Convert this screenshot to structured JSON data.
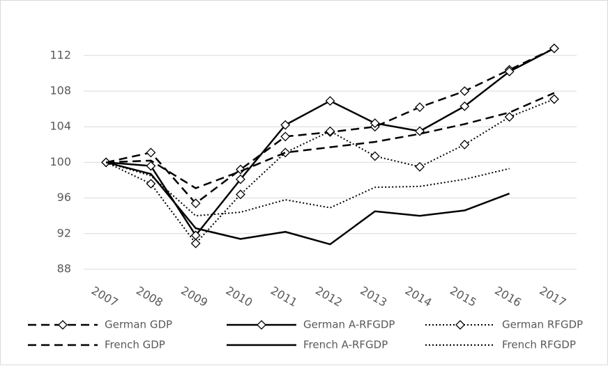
{
  "chart_data": {
    "type": "line",
    "categories": [
      "2007",
      "2008",
      "2009",
      "2010",
      "2011",
      "2012",
      "2013",
      "2014",
      "2015",
      "2016",
      "2017"
    ],
    "ylim": [
      88,
      114
    ],
    "yticks": [
      88,
      92,
      96,
      100,
      104,
      108,
      112
    ],
    "grid": true,
    "legend": "bottom",
    "series": [
      {
        "name": "German GDP",
        "color": "#000000",
        "line_style": "dashed",
        "marker": "diamond",
        "values": [
          100,
          101.1,
          95.4,
          99.2,
          102.9,
          103.4,
          104.0,
          106.2,
          108.0,
          110.4,
          112.8
        ]
      },
      {
        "name": "German A-RFGDP",
        "color": "#000000",
        "line_style": "solid",
        "marker": "diamond",
        "values": [
          100,
          99.6,
          91.8,
          98.1,
          104.2,
          106.9,
          104.4,
          103.5,
          106.3,
          110.2,
          112.8
        ]
      },
      {
        "name": "German RFGDP",
        "color": "#000000",
        "line_style": "dotted",
        "marker": "diamond",
        "values": [
          100,
          97.6,
          90.9,
          96.4,
          101.1,
          103.5,
          100.7,
          99.5,
          102.0,
          105.1,
          107.1
        ]
      },
      {
        "name": "French GDP",
        "color": "#000000",
        "line_style": "dashed",
        "values": [
          100,
          100.2,
          97.1,
          99.0,
          101.1,
          101.7,
          102.3,
          103.2,
          104.3,
          105.6,
          107.8
        ]
      },
      {
        "name": "French A-RFGDP",
        "color": "#000000",
        "line_style": "solid",
        "values": [
          100,
          98.7,
          92.6,
          91.4,
          92.2,
          90.8,
          94.5,
          94.0,
          94.6,
          96.5,
          null
        ]
      },
      {
        "name": "French RFGDP",
        "color": "#000000",
        "line_style": "dotted",
        "values": [
          100,
          98.5,
          94.0,
          94.4,
          95.8,
          94.9,
          97.2,
          97.3,
          98.1,
          99.3,
          null
        ]
      }
    ]
  }
}
